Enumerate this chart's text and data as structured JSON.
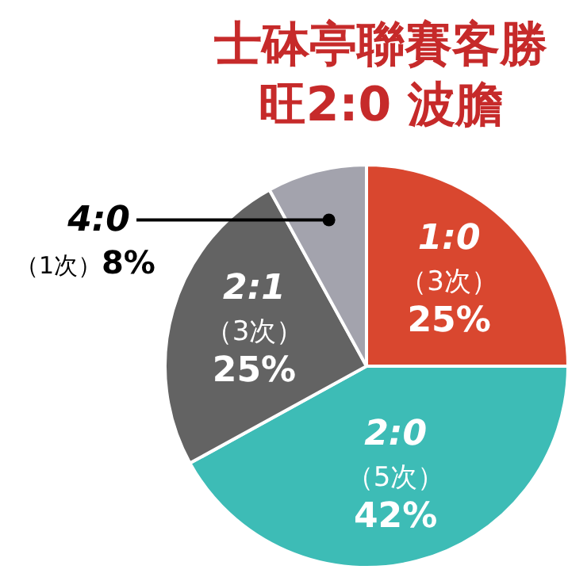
{
  "chart_data": {
    "type": "pie",
    "title": "士砵亭聯賽客勝旺2:0 波膽",
    "categories": [
      "1:0",
      "2:0",
      "2:1",
      "4:0"
    ],
    "values": [
      25,
      42,
      25,
      8
    ],
    "colors": [
      "#d9472f",
      "#3dbcb6",
      "#636363",
      "#a3a3ad"
    ],
    "value_labels": [
      "25%",
      "42%",
      "25%",
      "8%"
    ],
    "annotations": [
      {
        "text": "（3次）",
        "x": "1:0"
      },
      {
        "text": "（5次）",
        "x": "2:0"
      },
      {
        "text": "（3次）",
        "x": "2:1"
      },
      {
        "text": "（1次）",
        "x": "4:0"
      }
    ]
  }
}
